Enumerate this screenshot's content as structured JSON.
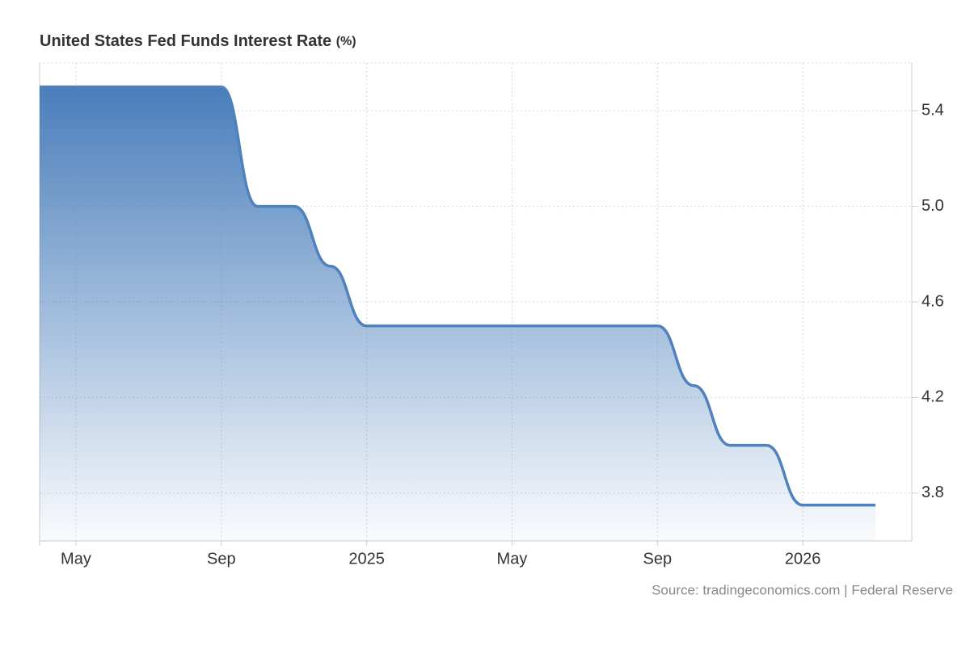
{
  "chart_data": {
    "type": "line",
    "title": "United States Fed Funds Interest Rate",
    "unit": "(%)",
    "source": "Source: tradingeconomics.com | Federal Reserve",
    "x": [
      "2024-04",
      "2024-05",
      "2024-06",
      "2024-07",
      "2024-08",
      "2024-09",
      "2024-10",
      "2024-11",
      "2024-12",
      "2025-01",
      "2025-02",
      "2025-03",
      "2025-04",
      "2025-05",
      "2025-06",
      "2025-07",
      "2025-08",
      "2025-09",
      "2025-10",
      "2025-11",
      "2025-12",
      "2026-01",
      "2026-02",
      "2026-03"
    ],
    "series": [
      {
        "name": "Fed Funds Interest Rate",
        "color": "#4f81bd",
        "values": [
          5.5,
          5.5,
          5.5,
          5.5,
          5.5,
          5.5,
          5.0,
          5.0,
          4.75,
          4.5,
          4.5,
          4.5,
          4.5,
          4.5,
          4.5,
          4.5,
          4.5,
          4.5,
          4.25,
          4.0,
          4.0,
          3.75,
          3.75,
          3.75
        ]
      }
    ],
    "xlim": [
      "2024-04",
      "2026-04"
    ],
    "xticks": [
      {
        "value": "2024-05",
        "label": "May"
      },
      {
        "value": "2024-09",
        "label": "Sep"
      },
      {
        "value": "2025-01",
        "label": "2025"
      },
      {
        "value": "2025-05",
        "label": "May"
      },
      {
        "value": "2025-09",
        "label": "Sep"
      },
      {
        "value": "2026-01",
        "label": "2026"
      }
    ],
    "ylim": [
      3.6,
      5.6
    ],
    "yticks": [
      3.8,
      4.2,
      4.6,
      {
        "value": 5,
        "label": "5.0"
      },
      5.4
    ],
    "grid": true,
    "y_axis_side": "right"
  }
}
